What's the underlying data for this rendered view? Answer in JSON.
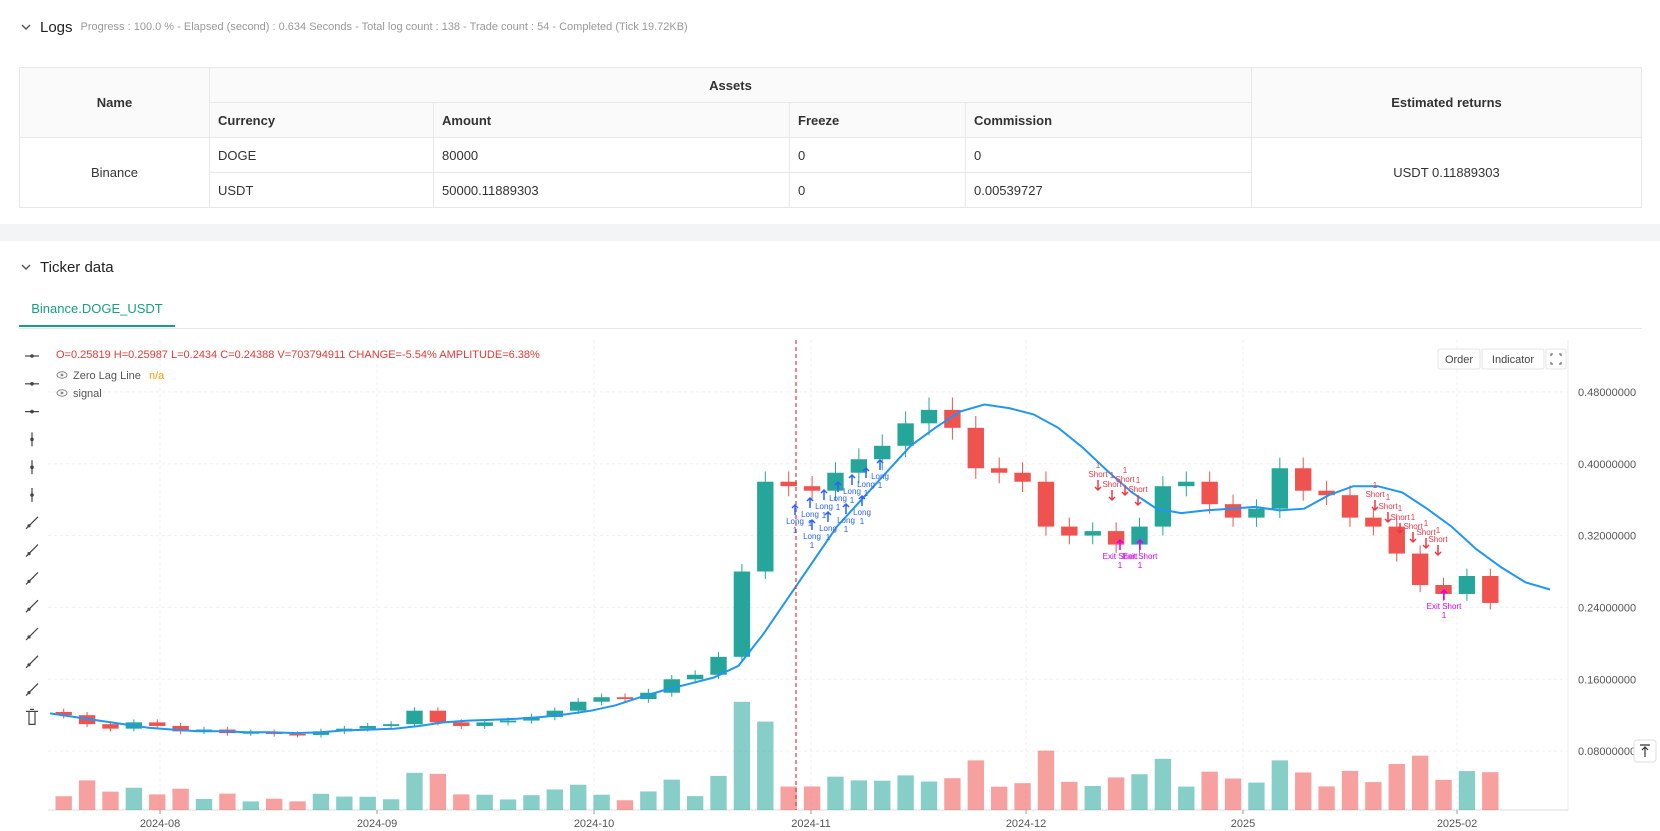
{
  "logs": {
    "title": "Logs",
    "status": "Progress : 100.0 % - Elapsed (second) : 0.634  Seconds - Total log count : 138 - Trade count : 54 - Completed (Tick 19.72KB)"
  },
  "assets_table": {
    "name_header": "Name",
    "assets_header": "Assets",
    "returns_header": "Estimated returns",
    "columns": [
      "Currency",
      "Amount",
      "Freeze",
      "Commission"
    ],
    "exchange": "Binance",
    "rows": [
      [
        "DOGE",
        "80000",
        "0",
        "0"
      ],
      [
        "USDT",
        "50000.11889303",
        "0",
        "0.00539727"
      ]
    ],
    "estimated_returns": "USDT 0.11889303"
  },
  "ticker": {
    "title": "Ticker data",
    "tab": "Binance.DOGE_USDT"
  },
  "chart_legend": {
    "ohlc": "O=0.25819 H=0.25987 L=0.2434 C=0.24388 V=703794911 CHANGE=-5.54% AMPLITUDE=6.38%",
    "zero_lag_label": "Zero Lag Line",
    "zero_lag_value": "n/a",
    "signal_label": "signal"
  },
  "chart_buttons": {
    "order": "Order",
    "indicator": "Indicator"
  },
  "colors": {
    "up": "#26a69a",
    "down": "#ef5350",
    "line": "#2196f3",
    "long": "#2962ff",
    "short": "#f23645",
    "exit": "#d500f9"
  },
  "chart_data": {
    "type": "candlestick",
    "symbol": "DOGE_USDT",
    "x_ticks": [
      "2024-08",
      "2024-09",
      "2024-10",
      "2024-11",
      "2024-12",
      "2025",
      "2025-02"
    ],
    "y_ticks": [
      "0.48000000",
      "0.40000000",
      "0.32000000",
      "0.24000000",
      "0.16000000",
      "0.08000000"
    ],
    "ylim": [
      0.03,
      0.52
    ],
    "zero_lag_line": [
      0.122,
      0.118,
      0.114,
      0.11,
      0.106,
      0.104,
      0.102,
      0.102,
      0.101,
      0.101,
      0.1,
      0.101,
      0.103,
      0.104,
      0.105,
      0.108,
      0.112,
      0.114,
      0.115,
      0.116,
      0.118,
      0.121,
      0.125,
      0.131,
      0.14,
      0.148,
      0.155,
      0.162,
      0.175,
      0.21,
      0.25,
      0.29,
      0.33,
      0.36,
      0.39,
      0.42,
      0.44,
      0.458,
      0.466,
      0.462,
      0.455,
      0.44,
      0.418,
      0.392,
      0.368,
      0.35,
      0.345,
      0.348,
      0.35,
      0.352,
      0.348,
      0.35,
      0.365,
      0.375,
      0.375,
      0.368,
      0.35,
      0.33,
      0.305,
      0.285,
      0.268,
      0.26
    ],
    "candles_close": [
      0.12,
      0.11,
      0.105,
      0.112,
      0.108,
      0.102,
      0.104,
      0.1,
      0.101,
      0.099,
      0.098,
      0.102,
      0.105,
      0.108,
      0.11,
      0.125,
      0.112,
      0.108,
      0.112,
      0.114,
      0.118,
      0.125,
      0.135,
      0.14,
      0.138,
      0.145,
      0.16,
      0.165,
      0.185,
      0.28,
      0.38,
      0.375,
      0.37,
      0.39,
      0.405,
      0.42,
      0.445,
      0.46,
      0.44,
      0.395,
      0.39,
      0.38,
      0.33,
      0.32,
      0.325,
      0.31,
      0.33,
      0.375,
      0.38,
      0.355,
      0.34,
      0.35,
      0.395,
      0.37,
      0.365,
      0.34,
      0.33,
      0.3,
      0.265,
      0.255,
      0.275,
      0.245
    ],
    "signals": [
      {
        "type": "Long",
        "qty": "1"
      },
      {
        "type": "Short",
        "qty": "1"
      },
      {
        "type": "Exit Short",
        "qty": "1"
      }
    ]
  }
}
